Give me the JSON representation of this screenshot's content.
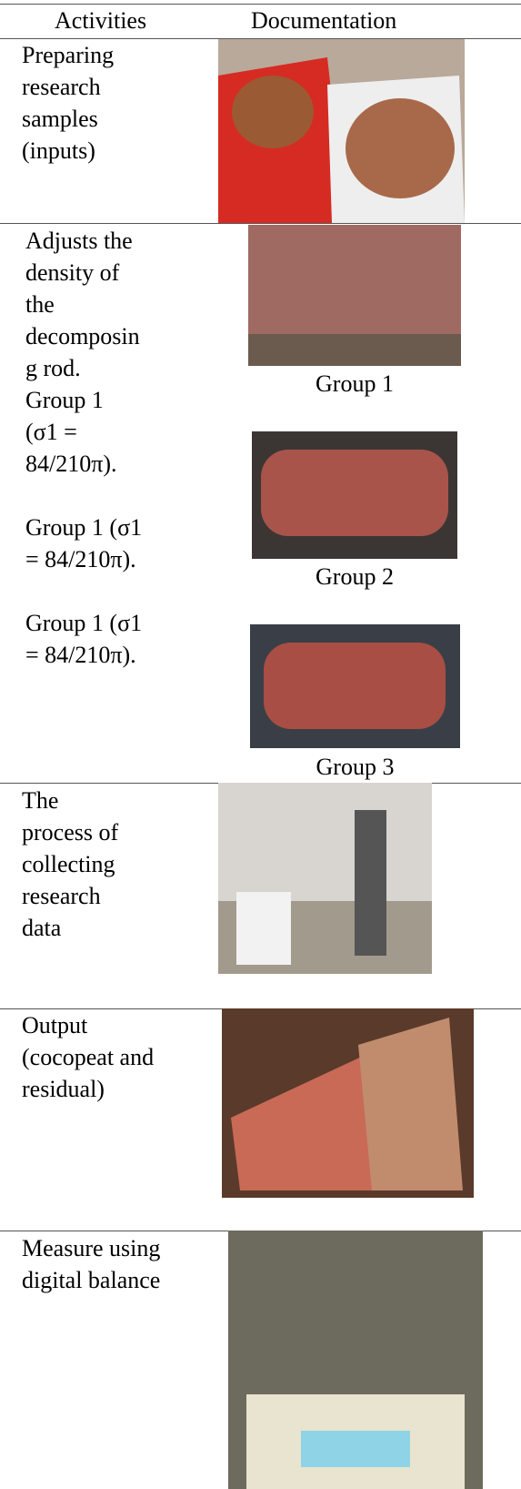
{
  "table": {
    "header": [
      "Activities",
      "Documentation"
    ],
    "rows": [
      {
        "activity": [
          [
            "Preparing",
            "research",
            "samples",
            "(inputs)"
          ]
        ]
      },
      {
        "activity": [
          [
            "Adjusts the",
            "density of",
            "the",
            "decomposin",
            "g rod.",
            "Group 1",
            "(σ1 =",
            "84/210π)."
          ],
          [
            "Group 1 (σ1",
            "= 84/210π)."
          ],
          [
            "Group 1 (σ1",
            "= 84/210π)."
          ]
        ],
        "captions": [
          "Group 1",
          "Group 2",
          "Group 3"
        ]
      },
      {
        "activity": [
          [
            "The",
            "process of",
            "collecting",
            "research",
            "data"
          ]
        ]
      },
      {
        "activity": [
          [
            "Output",
            "(cocopeat and",
            "residual)"
          ]
        ]
      },
      {
        "activity": [
          [
            "Measure using",
            "digital balance"
          ]
        ]
      }
    ]
  }
}
